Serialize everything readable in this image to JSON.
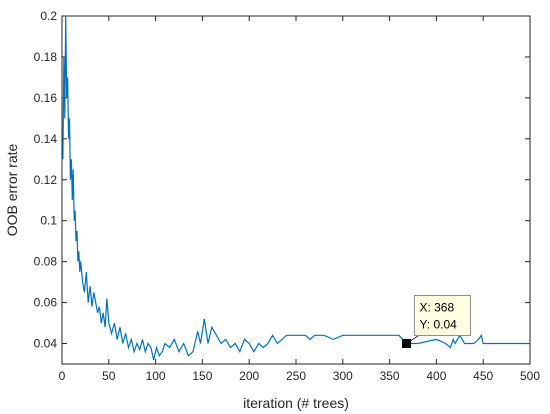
{
  "chart_data": {
    "type": "line",
    "title": "",
    "xlabel": "iteration (# trees)",
    "ylabel": "OOB error rate",
    "xlim": [
      0,
      500
    ],
    "ylim": [
      0.03,
      0.2
    ],
    "x_ticks": [
      "0",
      "50",
      "100",
      "150",
      "200",
      "250",
      "300",
      "350",
      "400",
      "450",
      "500"
    ],
    "y_ticks": [
      "0.04",
      "0.06",
      "0.08",
      "0.1",
      "0.12",
      "0.14",
      "0.16",
      "0.18",
      "0.2"
    ],
    "grid": false,
    "line_color": "#0072BD",
    "series": [
      {
        "x": [
          1,
          2,
          3,
          4,
          5,
          6,
          7,
          8,
          9,
          10,
          11,
          12,
          13,
          14,
          15,
          16,
          17,
          18,
          19,
          20,
          22,
          24,
          26,
          28,
          30,
          32,
          34,
          36,
          38,
          40,
          42,
          44,
          46,
          48,
          50,
          53,
          56,
          59,
          62,
          65,
          68,
          71,
          74,
          77,
          80,
          83,
          86,
          89,
          92,
          95,
          98,
          101,
          104,
          107,
          110,
          115,
          120,
          125,
          130,
          135,
          140,
          145,
          148,
          152,
          156,
          160,
          165,
          170,
          175,
          180,
          185,
          190,
          195,
          200,
          205,
          210,
          215,
          220,
          225,
          230,
          235,
          240,
          250,
          260,
          265,
          270,
          280,
          290,
          300,
          310,
          320,
          330,
          340,
          350,
          360,
          368,
          370,
          380,
          400,
          410,
          415,
          418,
          420,
          425,
          430,
          440,
          445,
          448,
          450,
          460,
          470,
          480,
          490,
          500
        ],
        "y": [
          0.13,
          0.18,
          0.15,
          0.2,
          0.16,
          0.17,
          0.14,
          0.15,
          0.12,
          0.13,
          0.11,
          0.125,
          0.1,
          0.105,
          0.09,
          0.095,
          0.08,
          0.085,
          0.075,
          0.08,
          0.07,
          0.065,
          0.075,
          0.06,
          0.068,
          0.058,
          0.065,
          0.06,
          0.055,
          0.058,
          0.05,
          0.055,
          0.048,
          0.062,
          0.05,
          0.045,
          0.05,
          0.042,
          0.048,
          0.04,
          0.045,
          0.038,
          0.042,
          0.036,
          0.04,
          0.037,
          0.042,
          0.036,
          0.04,
          0.038,
          0.032,
          0.038,
          0.034,
          0.036,
          0.04,
          0.038,
          0.042,
          0.036,
          0.04,
          0.034,
          0.036,
          0.046,
          0.04,
          0.052,
          0.04,
          0.048,
          0.044,
          0.04,
          0.042,
          0.038,
          0.04,
          0.036,
          0.042,
          0.04,
          0.036,
          0.04,
          0.038,
          0.04,
          0.044,
          0.04,
          0.042,
          0.044,
          0.044,
          0.044,
          0.042,
          0.044,
          0.044,
          0.042,
          0.044,
          0.044,
          0.044,
          0.044,
          0.044,
          0.044,
          0.044,
          0.04,
          0.04,
          0.04,
          0.042,
          0.04,
          0.038,
          0.042,
          0.04,
          0.044,
          0.04,
          0.04,
          0.042,
          0.044,
          0.04,
          0.04,
          0.04,
          0.04,
          0.04,
          0.04
        ]
      }
    ],
    "datatip": {
      "x": 368,
      "y": 0.04,
      "x_text": "X: 368",
      "y_text": "Y: 0.04"
    }
  }
}
